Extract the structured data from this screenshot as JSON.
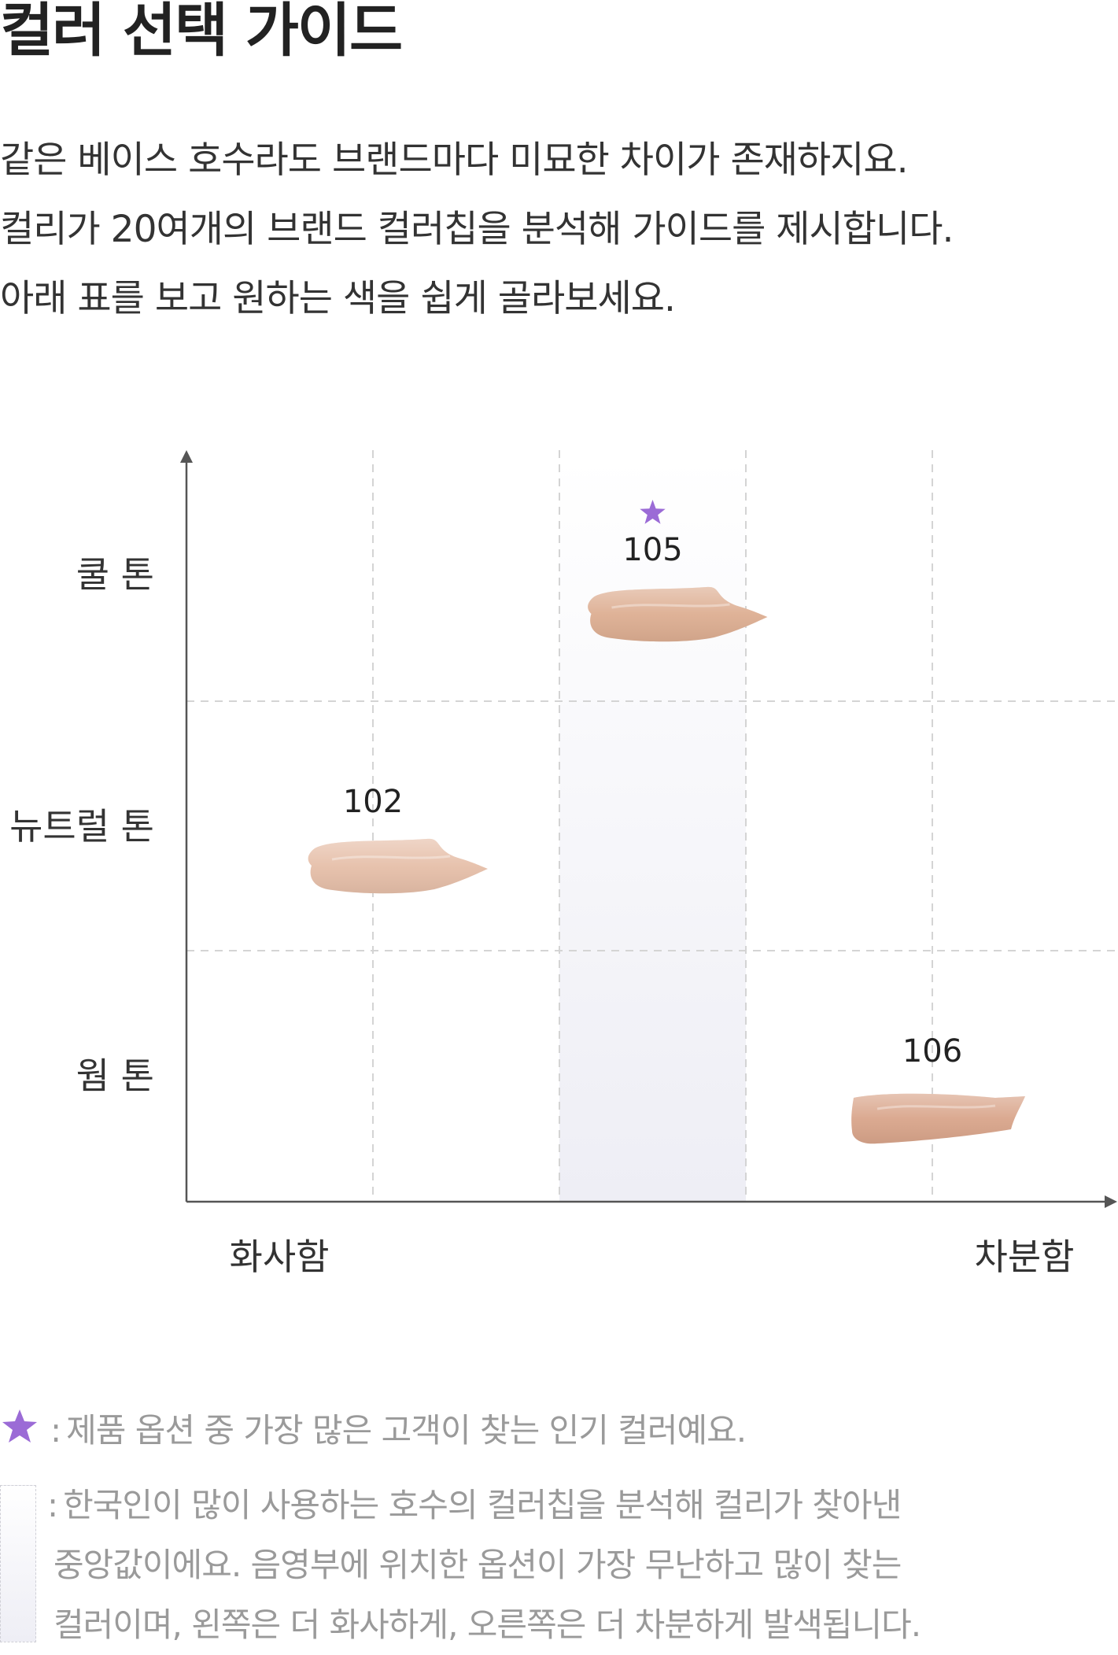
{
  "title": "컬러 선택 가이드",
  "intro": [
    "같은 베이스 호수라도 브랜드마다 미묘한 차이가 존재하지요.",
    "컬리가 20여개의 브랜드 컬러칩을 분석해 가이드를 제시합니다.",
    "아래 표를 보고 원하는 색을 쉽게 골라보세요."
  ],
  "colors": {
    "star": "#9b6bd6",
    "axis": "#555555",
    "grid": "#d4d4d4",
    "zone": "#eeeef5",
    "swatch_102": "#e6bfa9",
    "swatch_105": "#ddae92",
    "swatch_106": "#d9a58b"
  },
  "chart_data": {
    "type": "scatter",
    "x_axis": {
      "labels": [
        "화사함",
        "차분함"
      ],
      "columns": 5,
      "highlight_column": 3
    },
    "y_axis": {
      "labels": [
        "쿨 톤",
        "뉴트럴 톤",
        "웜 톤"
      ]
    },
    "points": [
      {
        "label": "102",
        "column": 1.0,
        "row": "뉴트럴 톤",
        "popular": false
      },
      {
        "label": "105",
        "column": 2.5,
        "row": "쿨 톤",
        "popular": true
      },
      {
        "label": "106",
        "column": 4.0,
        "row": "웜 톤",
        "popular": false
      }
    ],
    "grid": true
  },
  "legend": {
    "star_icon": "star-icon",
    "star_text": "제품 옵션 중 가장 많은 고객이 찾는 인기 컬러예요.",
    "zone_text": [
      "한국인이 많이 사용하는 호수의 컬러칩을 분석해 컬리가 찾아낸",
      "중앙값이에요. 음영부에 위치한 옵션이 가장 무난하고 많이 찾는",
      "컬러이며, 왼쪽은 더 화사하게, 오른쪽은 더 차분하게 발색됩니다."
    ],
    "colon": ":"
  }
}
